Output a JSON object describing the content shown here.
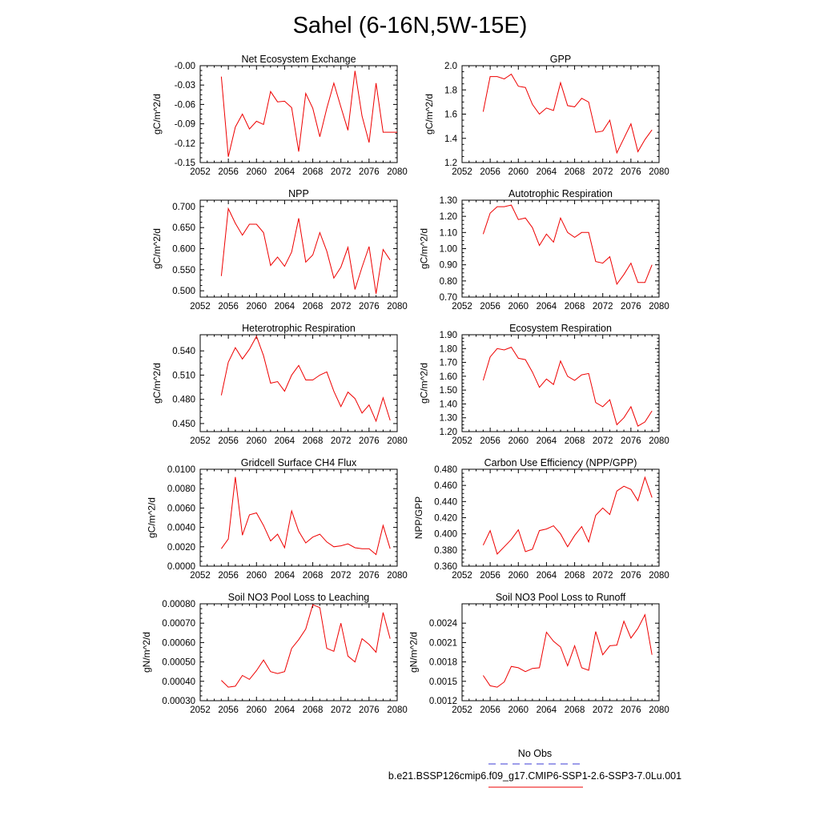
{
  "figure": {
    "title": "Sahel (6-16N,5W-15E)",
    "legend": [
      {
        "label": "No Obs",
        "color": "#3b3bd6",
        "dashed": true
      },
      {
        "label": "b.e21.BSSP126cmip6.f09_g17.CMIP6-SSP1-2.6-SSP3-7.0Lu.001",
        "color": "#ee0000",
        "dashed": false
      }
    ]
  },
  "chart_data": [
    {
      "type": "line",
      "title": "Net Ecosystem Exchange",
      "ylabel": "gC/m^2/d",
      "xlim": [
        2052,
        2080
      ],
      "xticks": [
        "2052",
        "2056",
        "2060",
        "2064",
        "2068",
        "2072",
        "2076",
        "2080"
      ],
      "ylim": [
        -0.15,
        0.0
      ],
      "yticks": [
        "-0.15",
        "-0.12",
        "-0.09",
        "-0.06",
        "-0.03",
        "-0.00"
      ],
      "series": [
        {
          "color": "#ee0000",
          "x": [
            2055,
            2056,
            2057,
            2058,
            2059,
            2060,
            2061,
            2062,
            2063,
            2064,
            2065,
            2066,
            2067,
            2068,
            2069,
            2070,
            2071,
            2072,
            2073,
            2074,
            2075,
            2076,
            2077,
            2078,
            2079,
            2080
          ],
          "values": [
            -0.017,
            -0.141,
            -0.095,
            -0.075,
            -0.098,
            -0.086,
            -0.091,
            -0.04,
            -0.056,
            -0.055,
            -0.065,
            -0.133,
            -0.043,
            -0.066,
            -0.11,
            -0.066,
            -0.027,
            -0.064,
            -0.1,
            -0.008,
            -0.078,
            -0.119,
            -0.027,
            -0.103,
            -0.103,
            -0.103
          ]
        }
      ]
    },
    {
      "type": "line",
      "title": "GPP",
      "ylabel": "gC/m^2/d",
      "xlim": [
        2052,
        2080
      ],
      "xticks": [
        "2052",
        "2056",
        "2060",
        "2064",
        "2068",
        "2072",
        "2076",
        "2080"
      ],
      "ylim": [
        1.2,
        2.0
      ],
      "yticks": [
        "1.2",
        "1.4",
        "1.6",
        "1.8",
        "2.0"
      ],
      "series": [
        {
          "color": "#ee0000",
          "x": [
            2055,
            2056,
            2057,
            2058,
            2059,
            2060,
            2061,
            2062,
            2063,
            2064,
            2065,
            2066,
            2067,
            2068,
            2069,
            2070,
            2071,
            2072,
            2073,
            2074,
            2075,
            2076,
            2077,
            2078,
            2079
          ],
          "values": [
            1.62,
            1.91,
            1.91,
            1.89,
            1.93,
            1.83,
            1.82,
            1.68,
            1.6,
            1.65,
            1.63,
            1.86,
            1.67,
            1.66,
            1.73,
            1.7,
            1.45,
            1.46,
            1.55,
            1.28,
            1.4,
            1.52,
            1.29,
            1.39,
            1.47
          ]
        }
      ]
    },
    {
      "type": "line",
      "title": "NPP",
      "ylabel": "gC/m^2/d",
      "xlim": [
        2052,
        2080
      ],
      "xticks": [
        "2052",
        "2056",
        "2060",
        "2064",
        "2068",
        "2072",
        "2076",
        "2080"
      ],
      "ylim": [
        0.485,
        0.715
      ],
      "yticks": [
        "0.500",
        "0.550",
        "0.600",
        "0.650",
        "0.700"
      ],
      "series": [
        {
          "color": "#ee0000",
          "x": [
            2055,
            2056,
            2057,
            2058,
            2059,
            2060,
            2061,
            2062,
            2063,
            2064,
            2065,
            2066,
            2067,
            2068,
            2069,
            2070,
            2071,
            2072,
            2073,
            2074,
            2075,
            2076,
            2077,
            2078,
            2079
          ],
          "values": [
            0.535,
            0.695,
            0.66,
            0.632,
            0.658,
            0.658,
            0.638,
            0.56,
            0.58,
            0.558,
            0.592,
            0.672,
            0.568,
            0.585,
            0.638,
            0.594,
            0.53,
            0.556,
            0.603,
            0.503,
            0.556,
            0.605,
            0.493,
            0.598,
            0.573
          ]
        }
      ]
    },
    {
      "type": "line",
      "title": "Autotrophic Respiration",
      "ylabel": "gC/m^2/d",
      "xlim": [
        2052,
        2080
      ],
      "xticks": [
        "2052",
        "2056",
        "2060",
        "2064",
        "2068",
        "2072",
        "2076",
        "2080"
      ],
      "ylim": [
        0.7,
        1.3
      ],
      "yticks": [
        "0.70",
        "0.80",
        "0.90",
        "1.00",
        "1.10",
        "1.20",
        "1.30"
      ],
      "series": [
        {
          "color": "#ee0000",
          "x": [
            2055,
            2056,
            2057,
            2058,
            2059,
            2060,
            2061,
            2062,
            2063,
            2064,
            2065,
            2066,
            2067,
            2068,
            2069,
            2070,
            2071,
            2072,
            2073,
            2074,
            2075,
            2076,
            2077,
            2078,
            2079
          ],
          "values": [
            1.09,
            1.22,
            1.26,
            1.26,
            1.27,
            1.18,
            1.19,
            1.13,
            1.02,
            1.09,
            1.04,
            1.19,
            1.1,
            1.07,
            1.1,
            1.1,
            0.92,
            0.91,
            0.95,
            0.78,
            0.84,
            0.91,
            0.79,
            0.79,
            0.9
          ]
        }
      ]
    },
    {
      "type": "line",
      "title": "Heterotrophic Respiration",
      "ylabel": "gC/m^2/d",
      "xlim": [
        2052,
        2080
      ],
      "xticks": [
        "2052",
        "2056",
        "2060",
        "2064",
        "2068",
        "2072",
        "2076",
        "2080"
      ],
      "ylim": [
        0.44,
        0.56
      ],
      "yticks": [
        "0.450",
        "0.480",
        "0.510",
        "0.540"
      ],
      "series": [
        {
          "color": "#ee0000",
          "x": [
            2055,
            2056,
            2057,
            2058,
            2059,
            2060,
            2061,
            2062,
            2063,
            2064,
            2065,
            2066,
            2067,
            2068,
            2069,
            2070,
            2071,
            2072,
            2073,
            2074,
            2075,
            2076,
            2077,
            2078,
            2079
          ],
          "values": [
            0.485,
            0.526,
            0.544,
            0.53,
            0.542,
            0.558,
            0.534,
            0.5,
            0.502,
            0.49,
            0.51,
            0.522,
            0.504,
            0.504,
            0.51,
            0.514,
            0.49,
            0.471,
            0.489,
            0.481,
            0.463,
            0.473,
            0.453,
            0.482,
            0.454
          ]
        }
      ]
    },
    {
      "type": "line",
      "title": "Ecosystem Respiration",
      "ylabel": "gC/m^2/d",
      "xlim": [
        2052,
        2080
      ],
      "xticks": [
        "2052",
        "2056",
        "2060",
        "2064",
        "2068",
        "2072",
        "2076",
        "2080"
      ],
      "ylim": [
        1.2,
        1.9
      ],
      "yticks": [
        "1.20",
        "1.30",
        "1.40",
        "1.50",
        "1.60",
        "1.70",
        "1.80",
        "1.90"
      ],
      "series": [
        {
          "color": "#ee0000",
          "x": [
            2055,
            2056,
            2057,
            2058,
            2059,
            2060,
            2061,
            2062,
            2063,
            2064,
            2065,
            2066,
            2067,
            2068,
            2069,
            2070,
            2071,
            2072,
            2073,
            2074,
            2075,
            2076,
            2077,
            2078,
            2079
          ],
          "values": [
            1.57,
            1.74,
            1.8,
            1.79,
            1.81,
            1.73,
            1.72,
            1.63,
            1.52,
            1.58,
            1.54,
            1.71,
            1.6,
            1.57,
            1.61,
            1.62,
            1.41,
            1.38,
            1.43,
            1.25,
            1.3,
            1.38,
            1.24,
            1.27,
            1.35
          ]
        }
      ]
    },
    {
      "type": "line",
      "title": "Gridcell Surface CH4 Flux",
      "ylabel": "gC/m^2/d",
      "xlim": [
        2052,
        2080
      ],
      "xticks": [
        "2052",
        "2056",
        "2060",
        "2064",
        "2068",
        "2072",
        "2076",
        "2080"
      ],
      "ylim": [
        0.0,
        0.01
      ],
      "yticks": [
        "0.0000",
        "0.0020",
        "0.0040",
        "0.0060",
        "0.0080",
        "0.0100"
      ],
      "series": [
        {
          "color": "#ee0000",
          "x": [
            2055,
            2056,
            2057,
            2058,
            2059,
            2060,
            2061,
            2062,
            2063,
            2064,
            2065,
            2066,
            2067,
            2068,
            2069,
            2070,
            2071,
            2072,
            2073,
            2074,
            2075,
            2076,
            2077,
            2078,
            2079
          ],
          "values": [
            0.0018,
            0.0028,
            0.0092,
            0.0032,
            0.0053,
            0.0055,
            0.0042,
            0.0026,
            0.0033,
            0.0019,
            0.0057,
            0.0036,
            0.0024,
            0.003,
            0.0033,
            0.0025,
            0.002,
            0.0021,
            0.0023,
            0.0019,
            0.0018,
            0.0018,
            0.0012,
            0.0042,
            0.0018
          ]
        }
      ]
    },
    {
      "type": "line",
      "title": "Carbon Use Efficiency (NPP/GPP)",
      "ylabel": "NPP/GPP",
      "xlim": [
        2052,
        2080
      ],
      "xticks": [
        "2052",
        "2056",
        "2060",
        "2064",
        "2068",
        "2072",
        "2076",
        "2080"
      ],
      "ylim": [
        0.36,
        0.48
      ],
      "yticks": [
        "0.360",
        "0.380",
        "0.400",
        "0.420",
        "0.440",
        "0.460",
        "0.480"
      ],
      "series": [
        {
          "color": "#ee0000",
          "x": [
            2055,
            2056,
            2057,
            2058,
            2059,
            2060,
            2061,
            2062,
            2063,
            2064,
            2065,
            2066,
            2067,
            2068,
            2069,
            2070,
            2071,
            2072,
            2073,
            2074,
            2075,
            2076,
            2077,
            2078,
            2079
          ],
          "values": [
            0.386,
            0.404,
            0.375,
            0.384,
            0.393,
            0.405,
            0.378,
            0.381,
            0.404,
            0.406,
            0.41,
            0.4,
            0.384,
            0.398,
            0.409,
            0.39,
            0.423,
            0.432,
            0.424,
            0.453,
            0.459,
            0.455,
            0.441,
            0.47,
            0.445
          ]
        }
      ]
    },
    {
      "type": "line",
      "title": "Soil NO3 Pool Loss to Leaching",
      "ylabel": "gN/m^2/d",
      "xlim": [
        2052,
        2080
      ],
      "xticks": [
        "2052",
        "2056",
        "2060",
        "2064",
        "2068",
        "2072",
        "2076",
        "2080"
      ],
      "ylim": [
        0.0003,
        0.0008
      ],
      "yticks": [
        "0.00030",
        "0.00040",
        "0.00050",
        "0.00060",
        "0.00070",
        "0.00080"
      ],
      "series": [
        {
          "color": "#ee0000",
          "x": [
            2055,
            2056,
            2057,
            2058,
            2059,
            2060,
            2061,
            2062,
            2063,
            2064,
            2065,
            2066,
            2067,
            2068,
            2069,
            2070,
            2071,
            2072,
            2073,
            2074,
            2075,
            2076,
            2077,
            2078,
            2079
          ],
          "values": [
            0.000405,
            0.00037,
            0.000375,
            0.00043,
            0.00041,
            0.000455,
            0.00051,
            0.00045,
            0.00044,
            0.00045,
            0.00057,
            0.000615,
            0.00067,
            0.000795,
            0.00078,
            0.00057,
            0.000555,
            0.0007,
            0.00053,
            0.0005,
            0.00062,
            0.00059,
            0.00055,
            0.000755,
            0.00062
          ]
        }
      ]
    },
    {
      "type": "line",
      "title": "Soil NO3 Pool Loss to Runoff",
      "ylabel": "gN/m^2/d",
      "xlim": [
        2052,
        2080
      ],
      "xticks": [
        "2052",
        "2056",
        "2060",
        "2064",
        "2068",
        "2072",
        "2076",
        "2080"
      ],
      "ylim": [
        0.0012,
        0.0027
      ],
      "yticks": [
        "0.0012",
        "0.0015",
        "0.0018",
        "0.0021",
        "0.0024"
      ],
      "series": [
        {
          "color": "#ee0000",
          "x": [
            2055,
            2056,
            2057,
            2058,
            2059,
            2060,
            2061,
            2062,
            2063,
            2064,
            2065,
            2066,
            2067,
            2068,
            2069,
            2070,
            2071,
            2072,
            2073,
            2074,
            2075,
            2076,
            2077,
            2078,
            2079
          ],
          "values": [
            0.00159,
            0.00143,
            0.00141,
            0.00149,
            0.00173,
            0.00171,
            0.00165,
            0.0017,
            0.00171,
            0.00226,
            0.00212,
            0.00203,
            0.00174,
            0.00205,
            0.00171,
            0.00167,
            0.00227,
            0.00191,
            0.00205,
            0.00206,
            0.00243,
            0.00217,
            0.00232,
            0.00253,
            0.00191
          ]
        }
      ]
    }
  ]
}
